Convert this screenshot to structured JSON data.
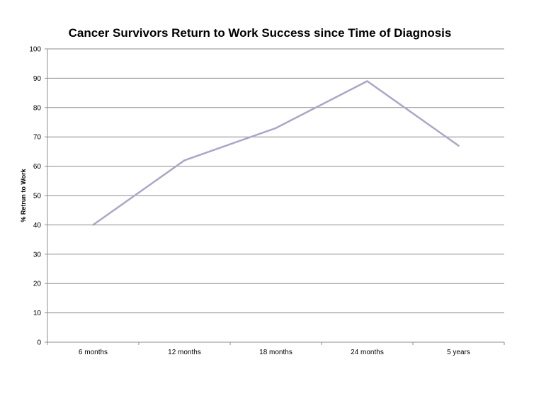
{
  "chart_data": {
    "type": "line",
    "title": "Cancer Survivors Return to Work Success since Time of Diagnosis",
    "xlabel": "",
    "ylabel": "% Retrun to Work",
    "categories": [
      "6 months",
      "12 months",
      "18 months",
      "24 months",
      "5 years"
    ],
    "series": [
      {
        "values": [
          40,
          62,
          73,
          89,
          67
        ],
        "color": "#a9a7c8"
      }
    ],
    "ylim": [
      0,
      100
    ],
    "yticks": [
      0,
      10,
      20,
      30,
      40,
      50,
      60,
      70,
      80,
      90,
      100
    ],
    "grid": true,
    "legend": "none",
    "colors": {
      "gridline": "#8c8c8c",
      "axis": "#8c8c8c",
      "line": "#a9a7c8"
    }
  }
}
